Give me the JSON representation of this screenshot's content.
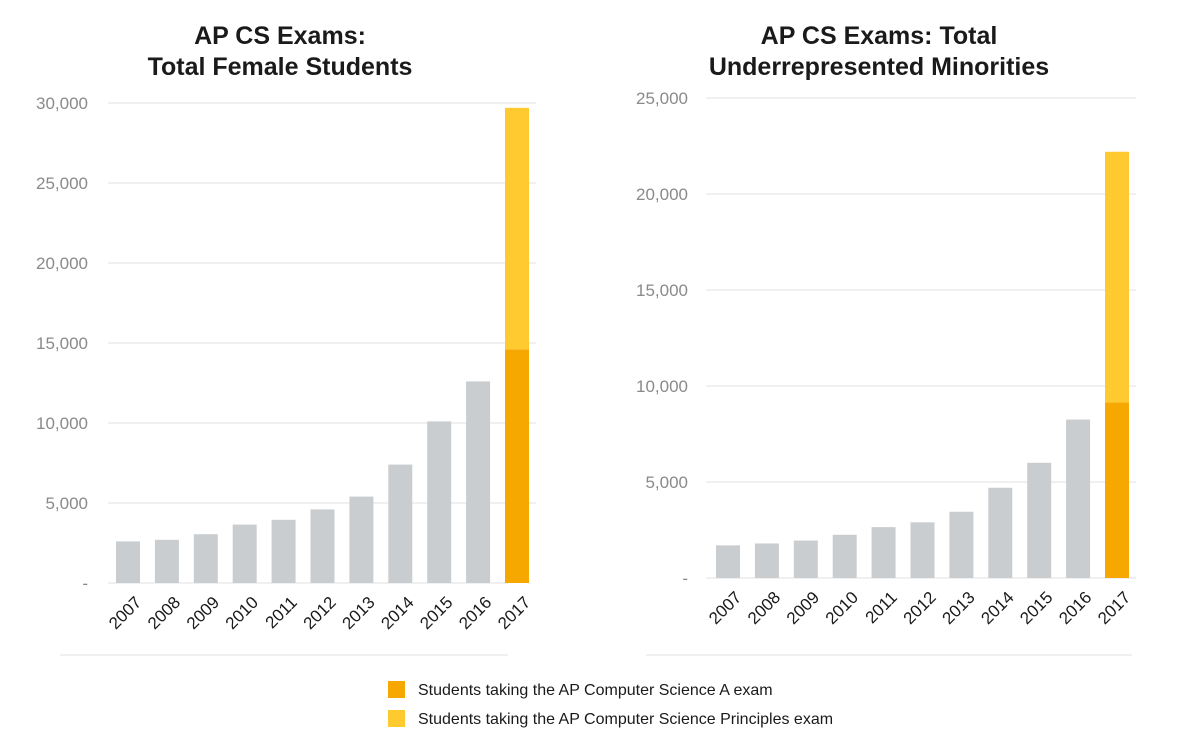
{
  "colors": {
    "apcsa": "#F6A800",
    "apcsp": "#FFCA30",
    "history": "#CACDD0",
    "grid": "#E2E2E2",
    "axis_text": "#8A8A8A"
  },
  "legend": {
    "items": [
      {
        "label": "Students taking the AP Computer Science A exam",
        "color": "#F6A800"
      },
      {
        "label": "Students taking the AP Computer Science Principles exam",
        "color": "#FFCA30"
      }
    ]
  },
  "chart_data": [
    {
      "type": "bar",
      "stacked": true,
      "title_lines": [
        "AP CS Exams:",
        "Total Female Students"
      ],
      "categories": [
        "2007",
        "2008",
        "2009",
        "2010",
        "2011",
        "2012",
        "2013",
        "2014",
        "2015",
        "2016",
        "2017"
      ],
      "series": [
        {
          "values": [
            2600,
            2700,
            3050,
            3650,
            3950,
            4600,
            5400,
            7400,
            10100,
            12600,
            14600
          ]
        },
        {
          "values": [
            0,
            0,
            0,
            0,
            0,
            0,
            0,
            0,
            0,
            0,
            15100
          ]
        }
      ],
      "ylim": [
        0,
        30000
      ],
      "yticks": [
        0,
        5000,
        10000,
        15000,
        20000,
        25000,
        30000
      ],
      "ytick_labels": [
        "-",
        "5,000",
        "10,000",
        "15,000",
        "20,000",
        "25,000",
        "30,000"
      ],
      "grid": true
    },
    {
      "type": "bar",
      "stacked": true,
      "title_lines": [
        "AP CS Exams: Total",
        "Underrepresented Minorities"
      ],
      "categories": [
        "2007",
        "2008",
        "2009",
        "2010",
        "2011",
        "2012",
        "2013",
        "2014",
        "2015",
        "2016",
        "2017"
      ],
      "series": [
        {
          "values": [
            1700,
            1800,
            1950,
            2250,
            2650,
            2900,
            3450,
            4700,
            6000,
            8250,
            9150
          ]
        },
        {
          "values": [
            0,
            0,
            0,
            0,
            0,
            0,
            0,
            0,
            0,
            0,
            13050
          ]
        }
      ],
      "ylim": [
        0,
        25000
      ],
      "yticks": [
        0,
        5000,
        10000,
        15000,
        20000,
        25000
      ],
      "ytick_labels": [
        "-",
        "5,000",
        "10,000",
        "15,000",
        "20,000",
        "25,000"
      ],
      "grid": true
    }
  ]
}
